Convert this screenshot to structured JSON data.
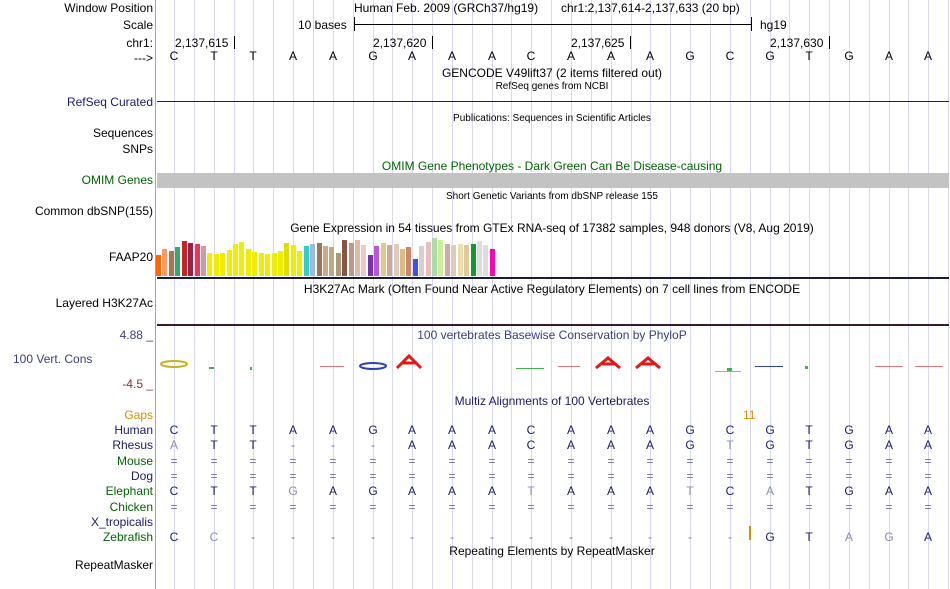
{
  "header": {
    "window_position_label": "Window Position",
    "scale_label": "Scale",
    "chr_label": "chr1:",
    "arrow_label": "--->",
    "assembly_title": "Human Feb. 2009 (GRCh37/hg19)",
    "region": "chr1:2,137,614-2,137,633 (20 bp)",
    "scale_text": "10 bases",
    "scale_assembly": "hg19",
    "positions": [
      "2,137,615",
      "2,137,620",
      "2,137,625",
      "2,137,630"
    ],
    "sequence": [
      "C",
      "T",
      "T",
      "A",
      "A",
      "G",
      "A",
      "A",
      "A",
      "C",
      "A",
      "A",
      "A",
      "G",
      "C",
      "G",
      "T",
      "G",
      "A",
      "A"
    ]
  },
  "tracks": {
    "gencode": {
      "title": "GENCODE V49lift37 (2 items filtered out)"
    },
    "refseq": {
      "title": "RefSeq genes from NCBI",
      "label": "RefSeq Curated",
      "color": "#1a1a6e"
    },
    "publications": {
      "title": "Publications: Sequences in Scientific Articles",
      "label": "Sequences"
    },
    "snps": {
      "label": "SNPs"
    },
    "omim": {
      "title": "OMIM Gene Phenotypes - Dark Green Can Be Disease-causing",
      "label": "OMIM Genes",
      "color": "#006400",
      "bar_color": "#c3c3c3"
    },
    "dbsnp": {
      "title": "Short Genetic Variants from dbSNP release 155",
      "label": "Common dbSNP(155)"
    },
    "gtex": {
      "title": "Gene Expression in 54 tissues from GTEx RNA-seq of 17382 samples, 948 donors (V8, Aug 2019)",
      "label": "FAAP20",
      "bars": [
        {
          "color": "#FF6600",
          "level": 0.55
        },
        {
          "color": "#FF9966",
          "level": 0.7
        },
        {
          "color": "#AA7755",
          "level": 0.65
        },
        {
          "color": "#33AA66",
          "level": 0.75
        },
        {
          "color": "#CC2222",
          "level": 0.92
        },
        {
          "color": "#992244",
          "level": 0.88
        },
        {
          "color": "#EE3355",
          "level": 0.85
        },
        {
          "color": "#CC99AA",
          "level": 0.8
        },
        {
          "color": "#EEEE00",
          "level": 0.6
        },
        {
          "color": "#EEEE00",
          "level": 0.58
        },
        {
          "color": "#EEEE00",
          "level": 0.6
        },
        {
          "color": "#EEEE00",
          "level": 0.68
        },
        {
          "color": "#EEEE00",
          "level": 0.85
        },
        {
          "color": "#EEEE00",
          "level": 0.9
        },
        {
          "color": "#EEEE00",
          "level": 0.7
        },
        {
          "color": "#EEEE00",
          "level": 0.62
        },
        {
          "color": "#EEEE00",
          "level": 0.6
        },
        {
          "color": "#EEEE00",
          "level": 0.58
        },
        {
          "color": "#EEEE00",
          "level": 0.6
        },
        {
          "color": "#EEEE00",
          "level": 0.66
        },
        {
          "color": "#DDDD00",
          "level": 0.88
        },
        {
          "color": "#EEEE00",
          "level": 0.82
        },
        {
          "color": "#EEEE00",
          "level": 0.66
        },
        {
          "color": "#33CCCC",
          "level": 0.8
        },
        {
          "color": "#99BBDD",
          "level": 0.85
        },
        {
          "color": "#997755",
          "level": 0.88
        },
        {
          "color": "#CCAA88",
          "level": 0.8
        },
        {
          "color": "#BBAA88",
          "level": 0.75
        },
        {
          "color": "#AA9977",
          "level": 0.6
        },
        {
          "color": "#885544",
          "level": 0.95
        },
        {
          "color": "#BB9988",
          "level": 0.88
        },
        {
          "color": "#DDBBAA",
          "level": 0.95
        },
        {
          "color": "#EEC8C8",
          "level": 0.82
        },
        {
          "color": "#7733AA",
          "level": 0.55
        },
        {
          "color": "#BB55DD",
          "level": 0.8
        },
        {
          "color": "#DDCC88",
          "level": 0.88
        },
        {
          "color": "#CCAA99",
          "level": 0.82
        },
        {
          "color": "#DDCCBB",
          "level": 0.85
        },
        {
          "color": "#DDBB88",
          "level": 0.7
        },
        {
          "color": "#CC8866",
          "level": 0.75
        },
        {
          "color": "#3355EE",
          "level": 0.45
        },
        {
          "color": "#DDCCCC",
          "level": 0.8
        },
        {
          "color": "#EEBBBB",
          "level": 0.9
        },
        {
          "color": "#AADDAA",
          "level": 1.0
        },
        {
          "color": "#CCEE99",
          "level": 0.95
        },
        {
          "color": "#CCAAAA",
          "level": 0.85
        },
        {
          "color": "#DDCCBB",
          "level": 0.82
        },
        {
          "color": "#EEDDAA",
          "level": 0.85
        },
        {
          "color": "#DDCC99",
          "level": 0.82
        },
        {
          "color": "#119933",
          "level": 0.85
        },
        {
          "color": "#DDDDDD",
          "level": 0.92
        },
        {
          "color": "#DDDDDD",
          "level": 0.82
        },
        {
          "color": "#FF00BB",
          "level": 0.72
        }
      ]
    },
    "h3k27ac": {
      "title": "H3K27Ac Mark (Often Found Near Active Regulatory Elements) on 7 cell lines from ENCODE",
      "label": "Layered H3K27Ac"
    },
    "conservation": {
      "title": "100 vertebrates Basewise Conservation by PhyloP",
      "label": "100 Vert. Cons",
      "max_label": "4.88 _",
      "min_label": "-4.5 _",
      "color": "#3a3a8c"
    },
    "multiz": {
      "title": "Multiz Alignments of 100 Vertebrates",
      "gaps_label": "Gaps",
      "gap_count": "11",
      "species": [
        {
          "name": "Human",
          "color": "#1a1a6e",
          "bases": [
            "C",
            "T",
            "T",
            "A",
            "A",
            "G",
            "A",
            "A",
            "A",
            "C",
            "A",
            "A",
            "A",
            "G",
            "C",
            "G",
            "T",
            "G",
            "A",
            "A"
          ]
        },
        {
          "name": "Rhesus",
          "color": "#1a1a6e",
          "bases": [
            "A",
            "T",
            "T",
            "-",
            "-",
            "-",
            "A",
            "A",
            "A",
            "C",
            "A",
            "A",
            "A",
            "G",
            "T",
            "G",
            "T",
            "G",
            "A",
            "A"
          ]
        },
        {
          "name": "Mouse",
          "color": "#006400",
          "bases": [
            "=",
            "=",
            "=",
            "=",
            "=",
            "=",
            "=",
            "=",
            "=",
            "=",
            "=",
            "=",
            "=",
            "=",
            "=",
            "=",
            "=",
            "=",
            "=",
            "="
          ]
        },
        {
          "name": "Dog",
          "color": "#1a1a6e",
          "bases": [
            "=",
            "=",
            "=",
            "=",
            "=",
            "=",
            "=",
            "=",
            "=",
            "=",
            "=",
            "=",
            "=",
            "=",
            "=",
            "=",
            "=",
            "=",
            "=",
            "="
          ]
        },
        {
          "name": "Elephant",
          "color": "#006400",
          "bases": [
            "C",
            "T",
            "T",
            "G",
            "A",
            "G",
            "A",
            "A",
            "A",
            "T",
            "A",
            "A",
            "A",
            "T",
            "C",
            "A",
            "T",
            "G",
            "A",
            "A"
          ]
        },
        {
          "name": "Chicken",
          "color": "#006400",
          "bases": [
            "=",
            "=",
            "=",
            "=",
            "=",
            "=",
            "=",
            "=",
            "=",
            "=",
            "=",
            "=",
            "=",
            "=",
            "=",
            "=",
            "=",
            "=",
            "=",
            "="
          ]
        },
        {
          "name": "X_tropicalis",
          "color": "#1a1a6e",
          "bases": [
            "",
            "",
            "",
            "",
            "",
            "",
            "",
            "",
            "",
            "",
            "",
            "",
            "",
            "",
            "",
            "",
            "",
            "",
            "",
            ""
          ]
        },
        {
          "name": "Zebrafish",
          "color": "#006400",
          "bases": [
            "C",
            "C",
            "-",
            "-",
            "-",
            "-",
            "-",
            "-",
            "-",
            "-",
            "-",
            "-",
            "-",
            "-",
            "-",
            "G",
            "T",
            "A",
            "G",
            "A"
          ]
        }
      ]
    },
    "repeatmasker": {
      "title": "Repeating Elements by RepeatMasker",
      "label": "RepeatMasker"
    }
  }
}
